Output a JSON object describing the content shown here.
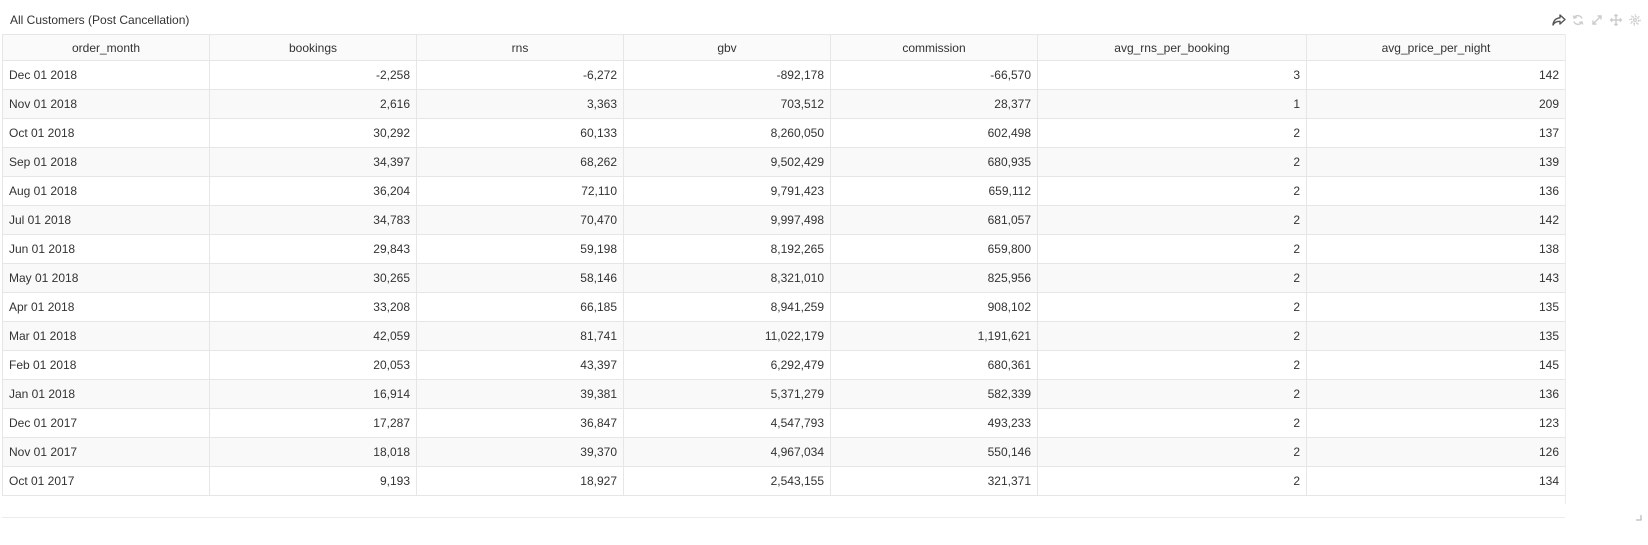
{
  "panel": {
    "title": "All Customers (Post Cancellation)",
    "icons": [
      "share-icon",
      "refresh-icon",
      "expand-icon",
      "move-icon",
      "settings-icon"
    ]
  },
  "table": {
    "columns": [
      "order_month",
      "bookings",
      "rns",
      "gbv",
      "commission",
      "avg_rns_per_booking",
      "avg_price_per_night"
    ],
    "rows": [
      [
        "Dec 01 2018",
        "-2,258",
        "-6,272",
        "-892,178",
        "-66,570",
        "3",
        "142"
      ],
      [
        "Nov 01 2018",
        "2,616",
        "3,363",
        "703,512",
        "28,377",
        "1",
        "209"
      ],
      [
        "Oct 01 2018",
        "30,292",
        "60,133",
        "8,260,050",
        "602,498",
        "2",
        "137"
      ],
      [
        "Sep 01 2018",
        "34,397",
        "68,262",
        "9,502,429",
        "680,935",
        "2",
        "139"
      ],
      [
        "Aug 01 2018",
        "36,204",
        "72,110",
        "9,791,423",
        "659,112",
        "2",
        "136"
      ],
      [
        "Jul 01 2018",
        "34,783",
        "70,470",
        "9,997,498",
        "681,057",
        "2",
        "142"
      ],
      [
        "Jun 01 2018",
        "29,843",
        "59,198",
        "8,192,265",
        "659,800",
        "2",
        "138"
      ],
      [
        "May 01 2018",
        "30,265",
        "58,146",
        "8,321,010",
        "825,956",
        "2",
        "143"
      ],
      [
        "Apr 01 2018",
        "33,208",
        "66,185",
        "8,941,259",
        "908,102",
        "2",
        "135"
      ],
      [
        "Mar 01 2018",
        "42,059",
        "81,741",
        "11,022,179",
        "1,191,621",
        "2",
        "135"
      ],
      [
        "Feb 01 2018",
        "20,053",
        "43,397",
        "6,292,479",
        "680,361",
        "2",
        "145"
      ],
      [
        "Jan 01 2018",
        "16,914",
        "39,381",
        "5,371,279",
        "582,339",
        "2",
        "136"
      ],
      [
        "Dec 01 2017",
        "17,287",
        "36,847",
        "4,547,793",
        "493,233",
        "2",
        "123"
      ],
      [
        "Nov 01 2017",
        "18,018",
        "39,370",
        "4,967,034",
        "550,146",
        "2",
        "126"
      ],
      [
        "Oct 01 2017",
        "9,193",
        "18,927",
        "2,543,155",
        "321,371",
        "2",
        "134"
      ]
    ]
  },
  "colors": {
    "text": "#333333",
    "border": "#e6e6e6",
    "stripe": "#f9f9f9",
    "icon_dark": "#555555",
    "icon_light": "#cccccc"
  }
}
